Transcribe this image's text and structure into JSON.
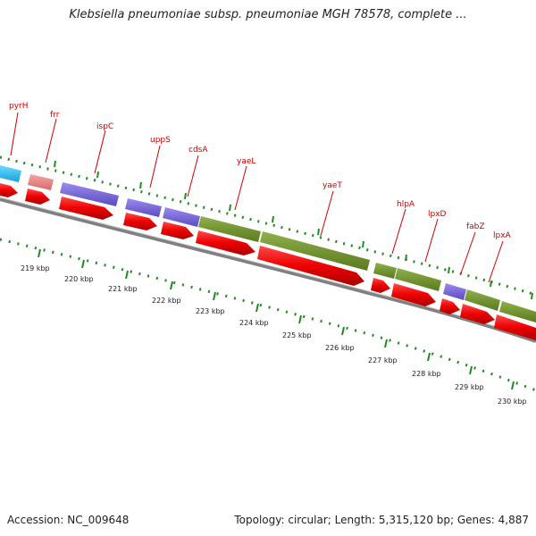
{
  "header": {
    "title": "Klebsiella pneumoniae subsp. pneumoniae MGH 78578, complete ..."
  },
  "footer": {
    "accession": "Accession: NC_009648",
    "summary": "Topology: circular; Length: 5,315,120 bp; Genes: 4,887"
  },
  "colors": {
    "cds_red": "#ee0000",
    "blue_feature": "#6a5acd",
    "green_feature": "#6b8e23",
    "cyan_feature": "#22bbee",
    "pink_feature": "#e88080",
    "ring_gray": "#999999",
    "tick_green": "#228b22",
    "label_red": "#cc0000"
  },
  "gene_labels": [
    "pyrH",
    "frr",
    "ispC",
    "uppS",
    "cdsA",
    "yaeL",
    "yaeT",
    "hlpA",
    "lpxD",
    "fabZ",
    "lpxA"
  ],
  "scale_labels": [
    "219 kbp",
    "220 kbp",
    "221 kbp",
    "222 kbp",
    "223 kbp",
    "224 kbp",
    "225 kbp",
    "226 kbp",
    "227 kbp",
    "228 kbp",
    "229 kbp",
    "230 kbp"
  ]
}
